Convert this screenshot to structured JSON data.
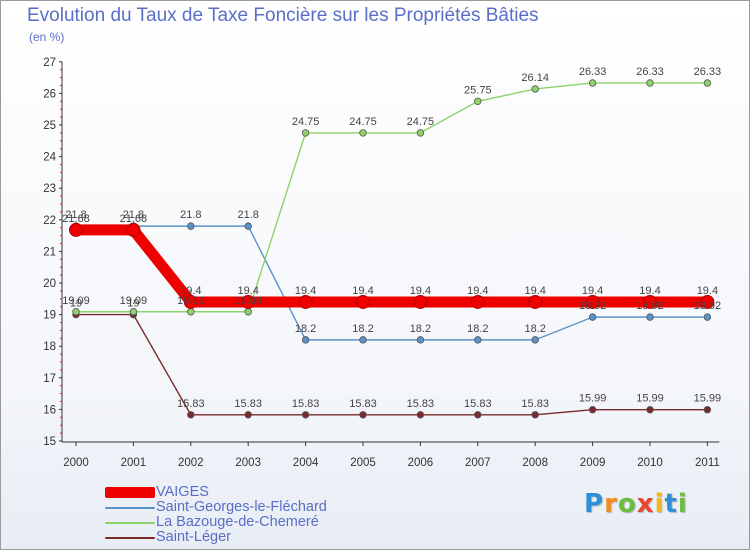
{
  "chart_data": {
    "type": "line",
    "title": "Evolution du Taux de Taxe Foncière sur les Propriétés Bâties",
    "subtitle": "(en %)",
    "xlabel": "",
    "ylabel": "",
    "ylim": [
      15,
      27
    ],
    "yticks": [
      "15",
      "16",
      "17",
      "18",
      "19",
      "20",
      "21",
      "22",
      "23",
      "24",
      "25",
      "26",
      "27"
    ],
    "categories": [
      "2000",
      "2001",
      "2002",
      "2003",
      "2004",
      "2005",
      "2006",
      "2007",
      "2008",
      "2009",
      "2010",
      "2011"
    ],
    "grid": false,
    "legend_position": "bottom-left",
    "series": [
      {
        "name": "VAIGES",
        "color": "#ee0000",
        "values": [
          21.68,
          21.68,
          19.4,
          19.4,
          19.4,
          19.4,
          19.4,
          19.4,
          19.4,
          19.4,
          19.4,
          19.4
        ],
        "labels": [
          "21.68",
          "21.68",
          "19.4",
          "19.4",
          "19.4",
          "19.4",
          "19.4",
          "19.4",
          "19.4",
          "19.4",
          "19.4",
          "19.4"
        ]
      },
      {
        "name": "Saint-Georges-le-Fléchard",
        "color": "#5b93c9",
        "values": [
          21.8,
          21.8,
          21.8,
          21.8,
          18.2,
          18.2,
          18.2,
          18.2,
          18.2,
          18.92,
          18.92,
          18.92
        ],
        "labels": [
          "21.8",
          "21.8",
          "21.8",
          "21.8",
          "18.2",
          "18.2",
          "18.2",
          "18.2",
          "18.2",
          "18.92",
          "18.92",
          "18.92"
        ]
      },
      {
        "name": "La Bazouge-de-Chemeré",
        "color": "#8ed36a",
        "values": [
          19.09,
          19.09,
          19.09,
          19.09,
          24.75,
          24.75,
          24.75,
          25.75,
          26.14,
          26.33,
          26.33,
          26.33
        ],
        "labels": [
          "19.09",
          "19.09",
          "19.09",
          "19.09",
          "24.75",
          "24.75",
          "24.75",
          "25.75",
          "26.14",
          "26.33",
          "26.33",
          "26.33"
        ]
      },
      {
        "name": "Saint-Léger",
        "color": "#7a2b2b",
        "values": [
          19.0,
          19.0,
          15.83,
          15.83,
          15.83,
          15.83,
          15.83,
          15.83,
          15.83,
          15.99,
          15.99,
          15.99
        ],
        "labels": [
          "19",
          "19",
          "15.83",
          "15.83",
          "15.83",
          "15.83",
          "15.83",
          "15.83",
          "15.83",
          "15.99",
          "15.99",
          "15.99"
        ]
      }
    ]
  },
  "brand": {
    "letters": [
      "P",
      "r",
      "o",
      "x",
      "i",
      "t",
      "i"
    ],
    "colors": [
      "#2f8fd8",
      "#f28c1e",
      "#6bbd3c",
      "#e8452c",
      "#f2b81e",
      "#2f8fd8",
      "#6bbd3c"
    ]
  }
}
